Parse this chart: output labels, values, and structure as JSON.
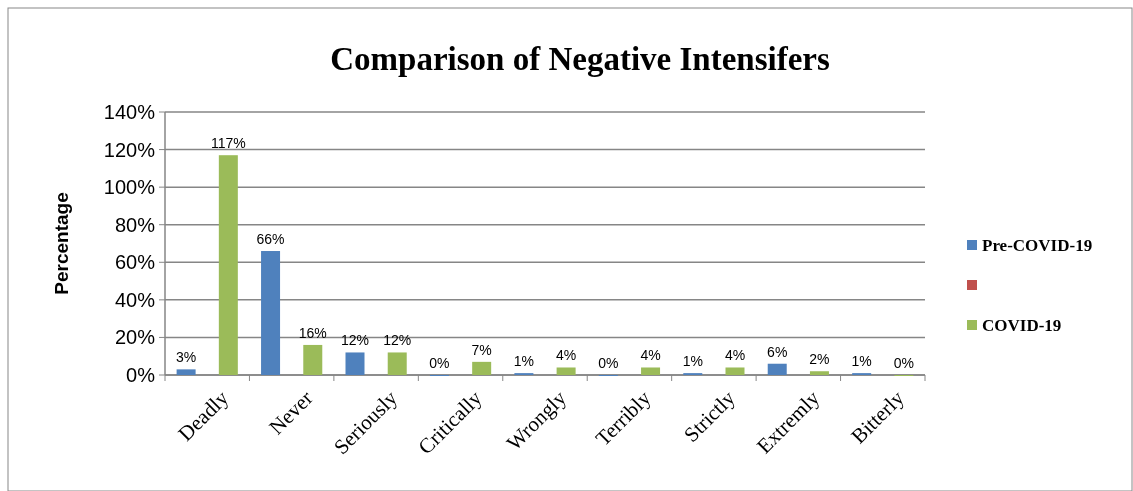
{
  "chart_data": {
    "type": "bar",
    "title": "Comparison of Negative Intensifers",
    "ylabel": "Percentage",
    "categories": [
      "Deadly",
      "Never",
      "Seriously",
      "Critically",
      "Wrongly",
      "Terribly",
      "Strictly",
      "Extremly",
      "Bitterly"
    ],
    "series": [
      {
        "name": "Pre-COVID-19",
        "color": "#4f81bd",
        "values": [
          3,
          66,
          12,
          0,
          1,
          0,
          1,
          6,
          1
        ],
        "value_labels": [
          "3%",
          "66%",
          "12%",
          "0%",
          "1%",
          "0%",
          "1%",
          "6%",
          "1%"
        ]
      },
      {
        "color": "#c0504d",
        "values": [
          null,
          null,
          null,
          null,
          null,
          null,
          null,
          null,
          null
        ]
      },
      {
        "name": "COVID-19",
        "color": "#9bbb59",
        "values": [
          117,
          16,
          12,
          7,
          4,
          4,
          4,
          2,
          0
        ],
        "value_labels": [
          "117%",
          "16%",
          "12%",
          "7%",
          "4%",
          "4%",
          "4%",
          "2%",
          "0%"
        ]
      }
    ],
    "ylim": [
      0,
      140
    ],
    "yticks": [
      {
        "value": 0,
        "label": "0%"
      },
      {
        "value": 20,
        "label": "20%"
      },
      {
        "value": 40,
        "label": "40%"
      },
      {
        "value": 60,
        "label": "60%"
      },
      {
        "value": 80,
        "label": "80%"
      },
      {
        "value": 100,
        "label": "100%"
      },
      {
        "value": 120,
        "label": "120%"
      },
      {
        "value": 140,
        "label": "140%"
      }
    ],
    "grid": "y",
    "legend": "right"
  }
}
